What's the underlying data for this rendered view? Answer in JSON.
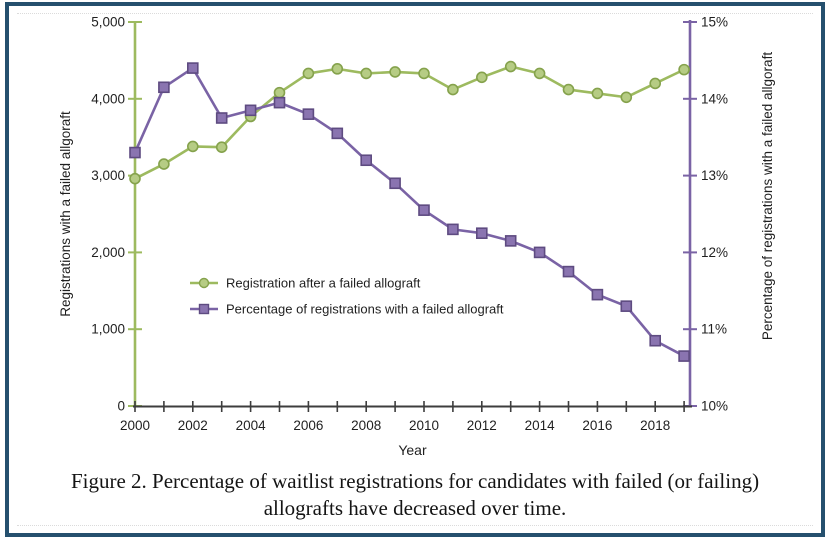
{
  "figure": {
    "caption": {
      "line1": "Figure 2. Percentage of waitlist registrations for candidates with failed (or failing)",
      "line2": "allografts have decreased over time."
    }
  },
  "chart_data": {
    "type": "line",
    "title": "",
    "x": [
      2000,
      2001,
      2002,
      2003,
      2004,
      2005,
      2006,
      2007,
      2008,
      2009,
      2010,
      2011,
      2012,
      2013,
      2014,
      2015,
      2016,
      2017,
      2018,
      2019
    ],
    "xlabel": "Year",
    "x_tick_labels": [
      "2000",
      "2002",
      "2004",
      "2006",
      "2008",
      "2010",
      "2012",
      "2014",
      "2016",
      "2018"
    ],
    "grid": false,
    "legend_position": "inside middle-left",
    "left_axis": {
      "label": "Registrations with a failed allgoraft",
      "range": [
        0,
        5000
      ],
      "tick_values": [
        5000,
        4000,
        3000,
        2000,
        1000,
        0
      ],
      "tick_labels": [
        "5,000",
        "4,000",
        "3,000",
        "2,000",
        "1,000",
        "0"
      ],
      "color": "#9dba5f"
    },
    "right_axis": {
      "label": "Percentage of registrations with a failed allgoraft",
      "range": [
        10,
        15
      ],
      "tick_values": [
        15,
        14,
        13,
        12,
        11,
        10
      ],
      "tick_labels": [
        "15%",
        "14%",
        "13%",
        "12%",
        "11%",
        "10%"
      ],
      "color": "#7a63a5"
    },
    "series": [
      {
        "name": "Registration after a failed allograft",
        "axis": "left",
        "marker": "circle",
        "line_color": "#9dba5f",
        "marker_fill": "#b6cc84",
        "marker_stroke": "#85a24c",
        "values": [
          2960,
          3150,
          3380,
          3370,
          3770,
          4080,
          4330,
          4390,
          4330,
          4350,
          4330,
          4120,
          4280,
          4420,
          4330,
          4120,
          4070,
          4020,
          4200,
          4380
        ]
      },
      {
        "name": "Percentage of registrations with a failed allograft",
        "axis": "right",
        "marker": "square",
        "line_color": "#7a63a5",
        "marker_fill": "#8a74b0",
        "marker_stroke": "#5e4b81",
        "values": [
          13.3,
          14.15,
          14.4,
          13.75,
          13.85,
          13.95,
          13.8,
          13.55,
          13.2,
          12.9,
          12.55,
          12.3,
          12.25,
          12.15,
          12.0,
          11.75,
          11.45,
          11.3,
          10.85,
          10.65
        ]
      }
    ]
  },
  "colors": {
    "frame_border": "#25506e",
    "x_axis": "#3d3d3d",
    "text": "#1f1f1f",
    "background": "#ffffff"
  }
}
